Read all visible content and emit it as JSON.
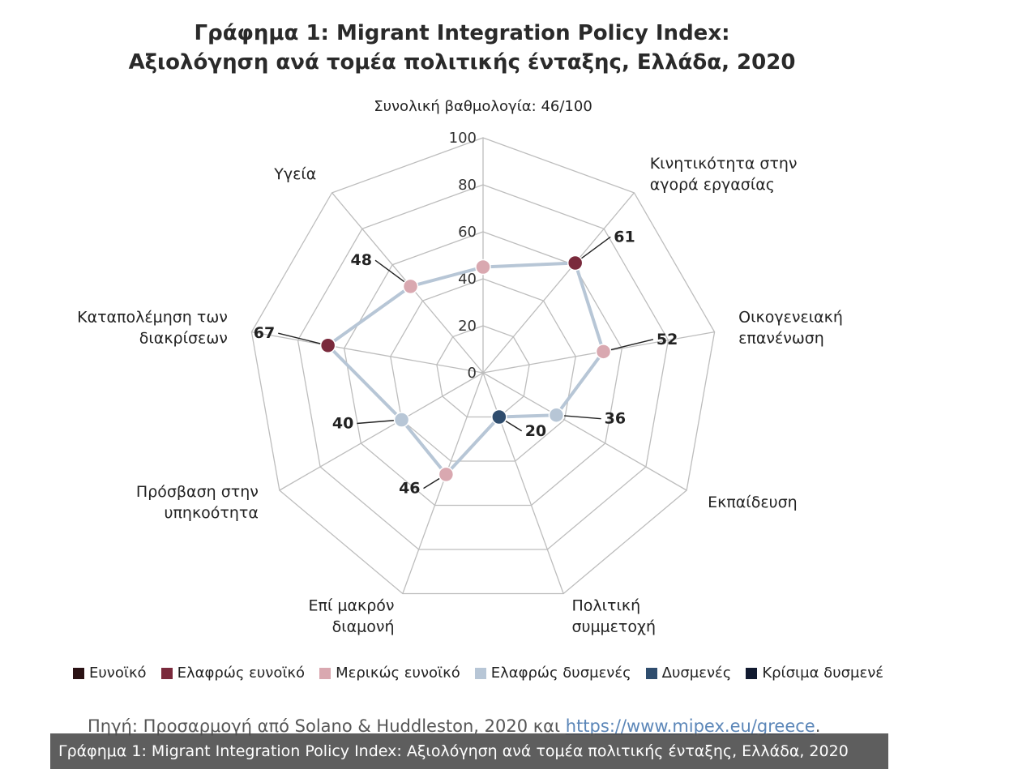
{
  "title_line1": "Γράφημα 1: Migrant Integration Policy Index:",
  "title_line2": "Αξιολόγηση ανά τομέα πολιτικής ένταξης, Ελλάδα, 2020",
  "chart_data": {
    "type": "radar",
    "subtitle": "Συνολική βαθμολογία: 46/100",
    "rlim": [
      0,
      100
    ],
    "r_ticks": [
      "0",
      "20",
      "40",
      "60",
      "80",
      "100"
    ],
    "axes": [
      {
        "label": "",
        "value": 45,
        "label_shown": "",
        "color": "#d9a8b0"
      },
      {
        "label": "Κινητικότητα στην αγορά εργασίας",
        "value": 61,
        "label_shown": "61",
        "color": "#7a2a3c"
      },
      {
        "label": "Οικογενειακή επανένωση",
        "value": 52,
        "label_shown": "52",
        "color": "#d9a8b0"
      },
      {
        "label": "Εκπαίδευση",
        "value": 36,
        "label_shown": "36",
        "color": "#b7c6d6"
      },
      {
        "label": "Πολιτική συμμετοχή",
        "value": 20,
        "label_shown": "20",
        "color": "#2f4d6e"
      },
      {
        "label": "Επί μακρόν διαμονή",
        "value": 46,
        "label_shown": "46",
        "color": "#d9a8b0"
      },
      {
        "label": "Πρόσβαση στην υπηκοότητα",
        "value": 40,
        "label_shown": "40",
        "color": "#b7c6d6"
      },
      {
        "label": "Καταπολέμηση των διακρίσεων",
        "value": 67,
        "label_shown": "67",
        "color": "#7a2a3c"
      },
      {
        "label": "Υγεία",
        "value": 48,
        "label_shown": "48",
        "color": "#d9a8b0"
      }
    ],
    "legend": [
      {
        "label": "Ευνοϊκό",
        "color": "#2a1214"
      },
      {
        "label": "Ελαφρώς ευνοϊκό",
        "color": "#7a2a3c"
      },
      {
        "label": "Μερικώς ευνοϊκό",
        "color": "#d9a8b0"
      },
      {
        "label": "Ελαφρώς δυσμενές",
        "color": "#b7c6d6"
      },
      {
        "label": "Δυσμενές",
        "color": "#2f4d6e"
      },
      {
        "label": "Κρίσιμα δυσμενέ",
        "color": "#111a30"
      }
    ],
    "line_color": "#b7c6d6",
    "grid_color": "#bdbdbd"
  },
  "source_text": "Πηγή: Προσαρμογή από Solano & Huddleston, 2020 και ",
  "source_link": "https://www.mipex.eu/greece",
  "source_end": ".",
  "caption": "Γράφημα 1: Migrant Integration Policy Index: Αξιολόγηση ανά τομέα πολιτικής ένταξης, Ελλάδα, 2020"
}
